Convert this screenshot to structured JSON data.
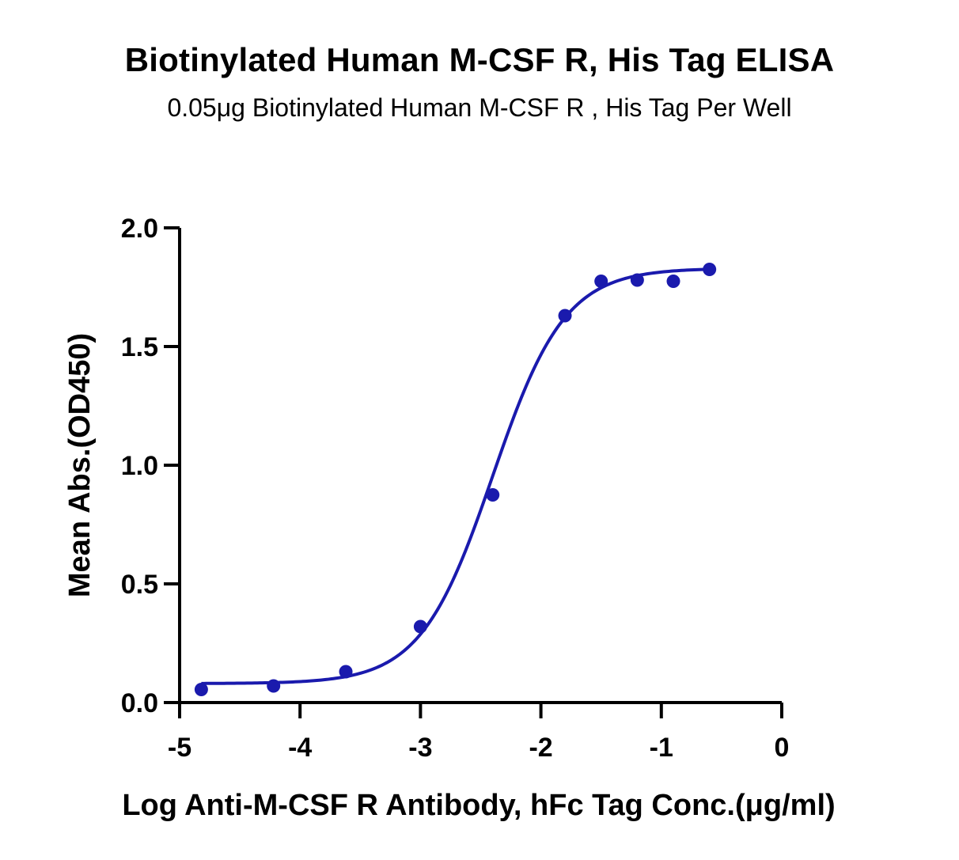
{
  "chart_data": {
    "type": "scatter",
    "title": "Biotinylated Human M-CSF R, His Tag ELISA",
    "subtitle": "0.05μg Biotinylated Human M-CSF R , His Tag Per Well",
    "xlabel": "Log  Anti-M-CSF R Antibody, hFc Tag Conc.(μg/ml)",
    "ylabel": "Mean Abs.(OD450)",
    "xlim": [
      -5,
      0
    ],
    "ylim": [
      0,
      2.0
    ],
    "x_ticks": [
      -5,
      -4,
      -3,
      -2,
      -1,
      0
    ],
    "x_tick_labels": [
      "-5",
      "-4",
      "-3",
      "-2",
      "-1",
      "0"
    ],
    "y_ticks": [
      0,
      0.5,
      1.0,
      1.5,
      2.0
    ],
    "y_tick_labels": [
      "0.0",
      "0.5",
      "1.0",
      "1.5",
      "2.0"
    ],
    "grid": false,
    "series_color": "#1a1aad",
    "points": [
      {
        "x": -4.82,
        "y": 0.055
      },
      {
        "x": -4.22,
        "y": 0.07
      },
      {
        "x": -3.62,
        "y": 0.13
      },
      {
        "x": -3.0,
        "y": 0.32
      },
      {
        "x": -2.4,
        "y": 0.875
      },
      {
        "x": -1.8,
        "y": 1.63
      },
      {
        "x": -1.5,
        "y": 1.775
      },
      {
        "x": -1.2,
        "y": 1.78
      },
      {
        "x": -0.9,
        "y": 1.775
      },
      {
        "x": -0.6,
        "y": 1.825
      }
    ],
    "fit": {
      "model": "4PL",
      "bottom": 0.08,
      "top": 1.83,
      "logEC50": -2.4,
      "hill": 1.45
    }
  }
}
